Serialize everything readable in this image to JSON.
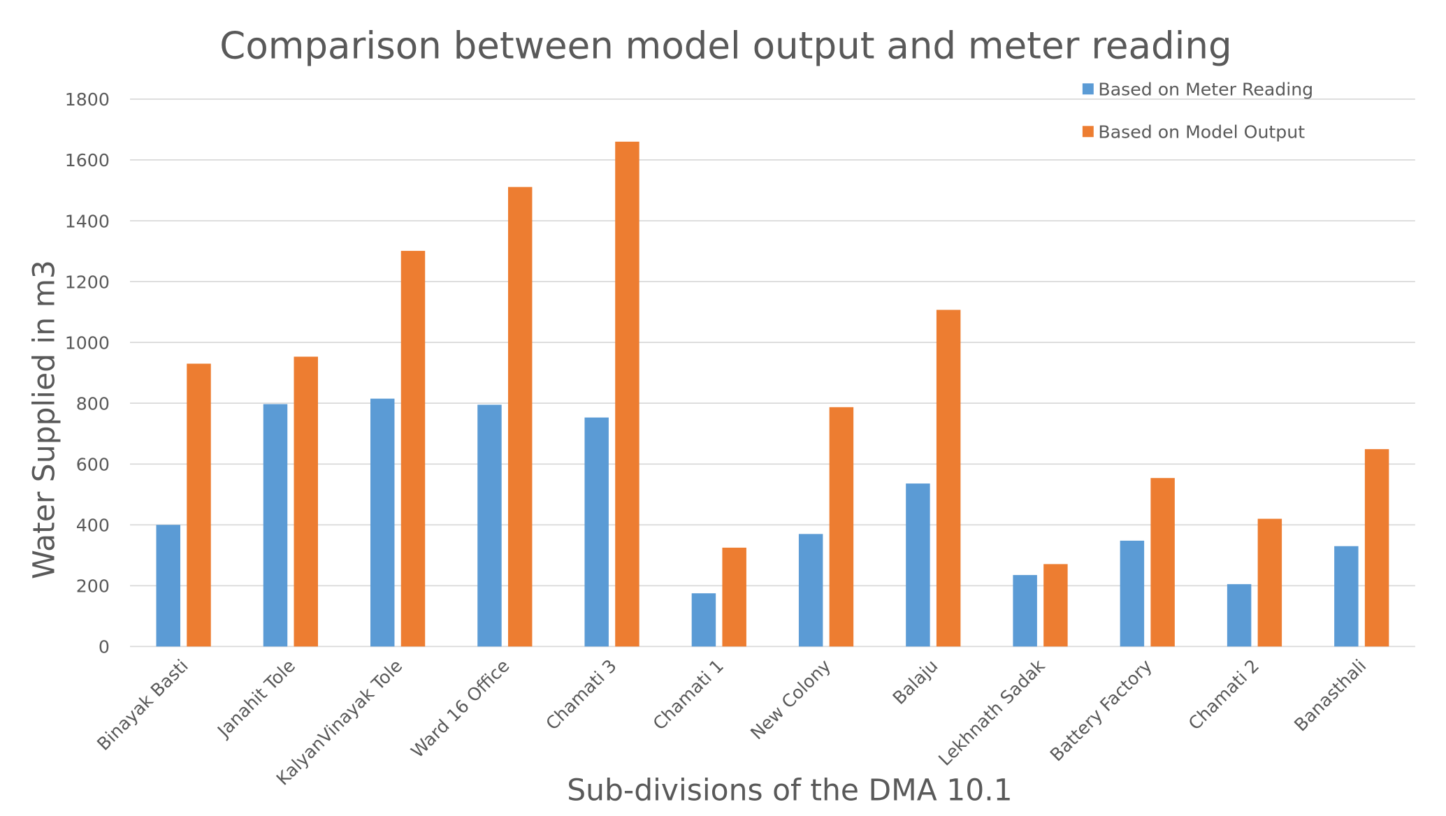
{
  "chart_data": {
    "type": "bar",
    "title": "Comparison between model output and meter reading",
    "xlabel": "Sub-divisions of the DMA 10.1",
    "ylabel": "Water Supplied in m3",
    "ylim": [
      0,
      1800
    ],
    "yticks": [
      0,
      200,
      400,
      600,
      800,
      1000,
      1200,
      1400,
      1600,
      1800
    ],
    "grid": true,
    "legend_placement": "top-right",
    "categories": [
      "Binayak Basti",
      "Janahit Tole",
      "KalyanVinayak Tole",
      "Ward 16 Office",
      "Chamati 3",
      "Chamati 1",
      "New Colony",
      "Balaju",
      "Lekhnath Sadak",
      "Battery Factory",
      "Chamati 2",
      "Banasthali"
    ],
    "series": [
      {
        "name": "Based on Meter Reading",
        "color": "#5B9BD5",
        "values": [
          400,
          797,
          815,
          795,
          753,
          175,
          370,
          536,
          235,
          348,
          205,
          330
        ]
      },
      {
        "name": "Based on Model Output",
        "color": "#ED7D31",
        "values": [
          930,
          953,
          1301,
          1511,
          1660,
          325,
          787,
          1107,
          271,
          554,
          420,
          649
        ]
      }
    ]
  }
}
